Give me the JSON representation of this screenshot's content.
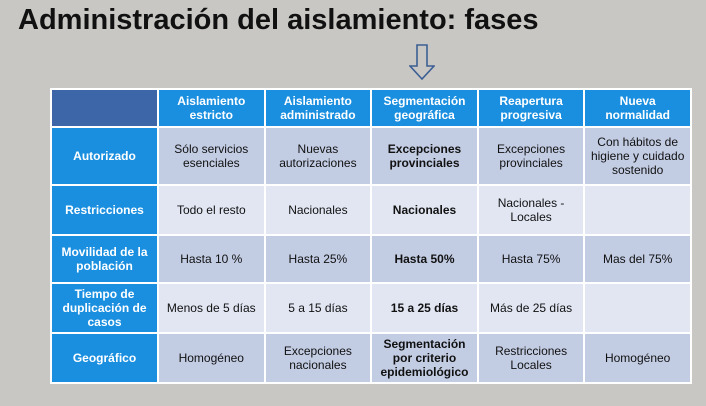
{
  "title": "Administración del aislamiento: fases",
  "arrow_icon": "down-arrow-icon",
  "colors": {
    "header_blue": "#1a8fe0",
    "corner_blue": "#3c66a8",
    "row_dark": "#c2cce3",
    "row_light": "#e1e6f2",
    "background": "#c9c7c4"
  },
  "table": {
    "columns": [
      "Aislamiento estricto",
      "Aislamiento administrado",
      "Segmentación geográfica",
      "Reapertura progresiva",
      "Nueva normalidad"
    ],
    "rows": [
      {
        "label": "Autorizado",
        "cells": [
          "Sólo servicios esenciales",
          "Nuevas autorizaciones",
          "Excepciones provinciales",
          "Excepciones provinciales",
          "Con hábitos de higiene y cuidado sostenido"
        ]
      },
      {
        "label": "Restricciones",
        "cells": [
          "Todo el resto",
          "Nacionales",
          "Nacionales",
          "Nacionales - Locales",
          ""
        ]
      },
      {
        "label": "Movilidad de la población",
        "cells": [
          "Hasta 10 %",
          "Hasta 25%",
          "Hasta 50%",
          "Hasta 75%",
          "Mas del 75%"
        ]
      },
      {
        "label": "Tiempo de duplicación de casos",
        "cells": [
          "Menos de 5 días",
          "5 a 15 días",
          "15 a 25 días",
          "Más de 25 días",
          ""
        ]
      },
      {
        "label": "Geográfico",
        "cells": [
          "Homogéneo",
          "Excepciones nacionales",
          "Segmentación por criterio epidemiológico",
          "Restricciones Locales",
          "Homogéneo"
        ]
      }
    ]
  }
}
